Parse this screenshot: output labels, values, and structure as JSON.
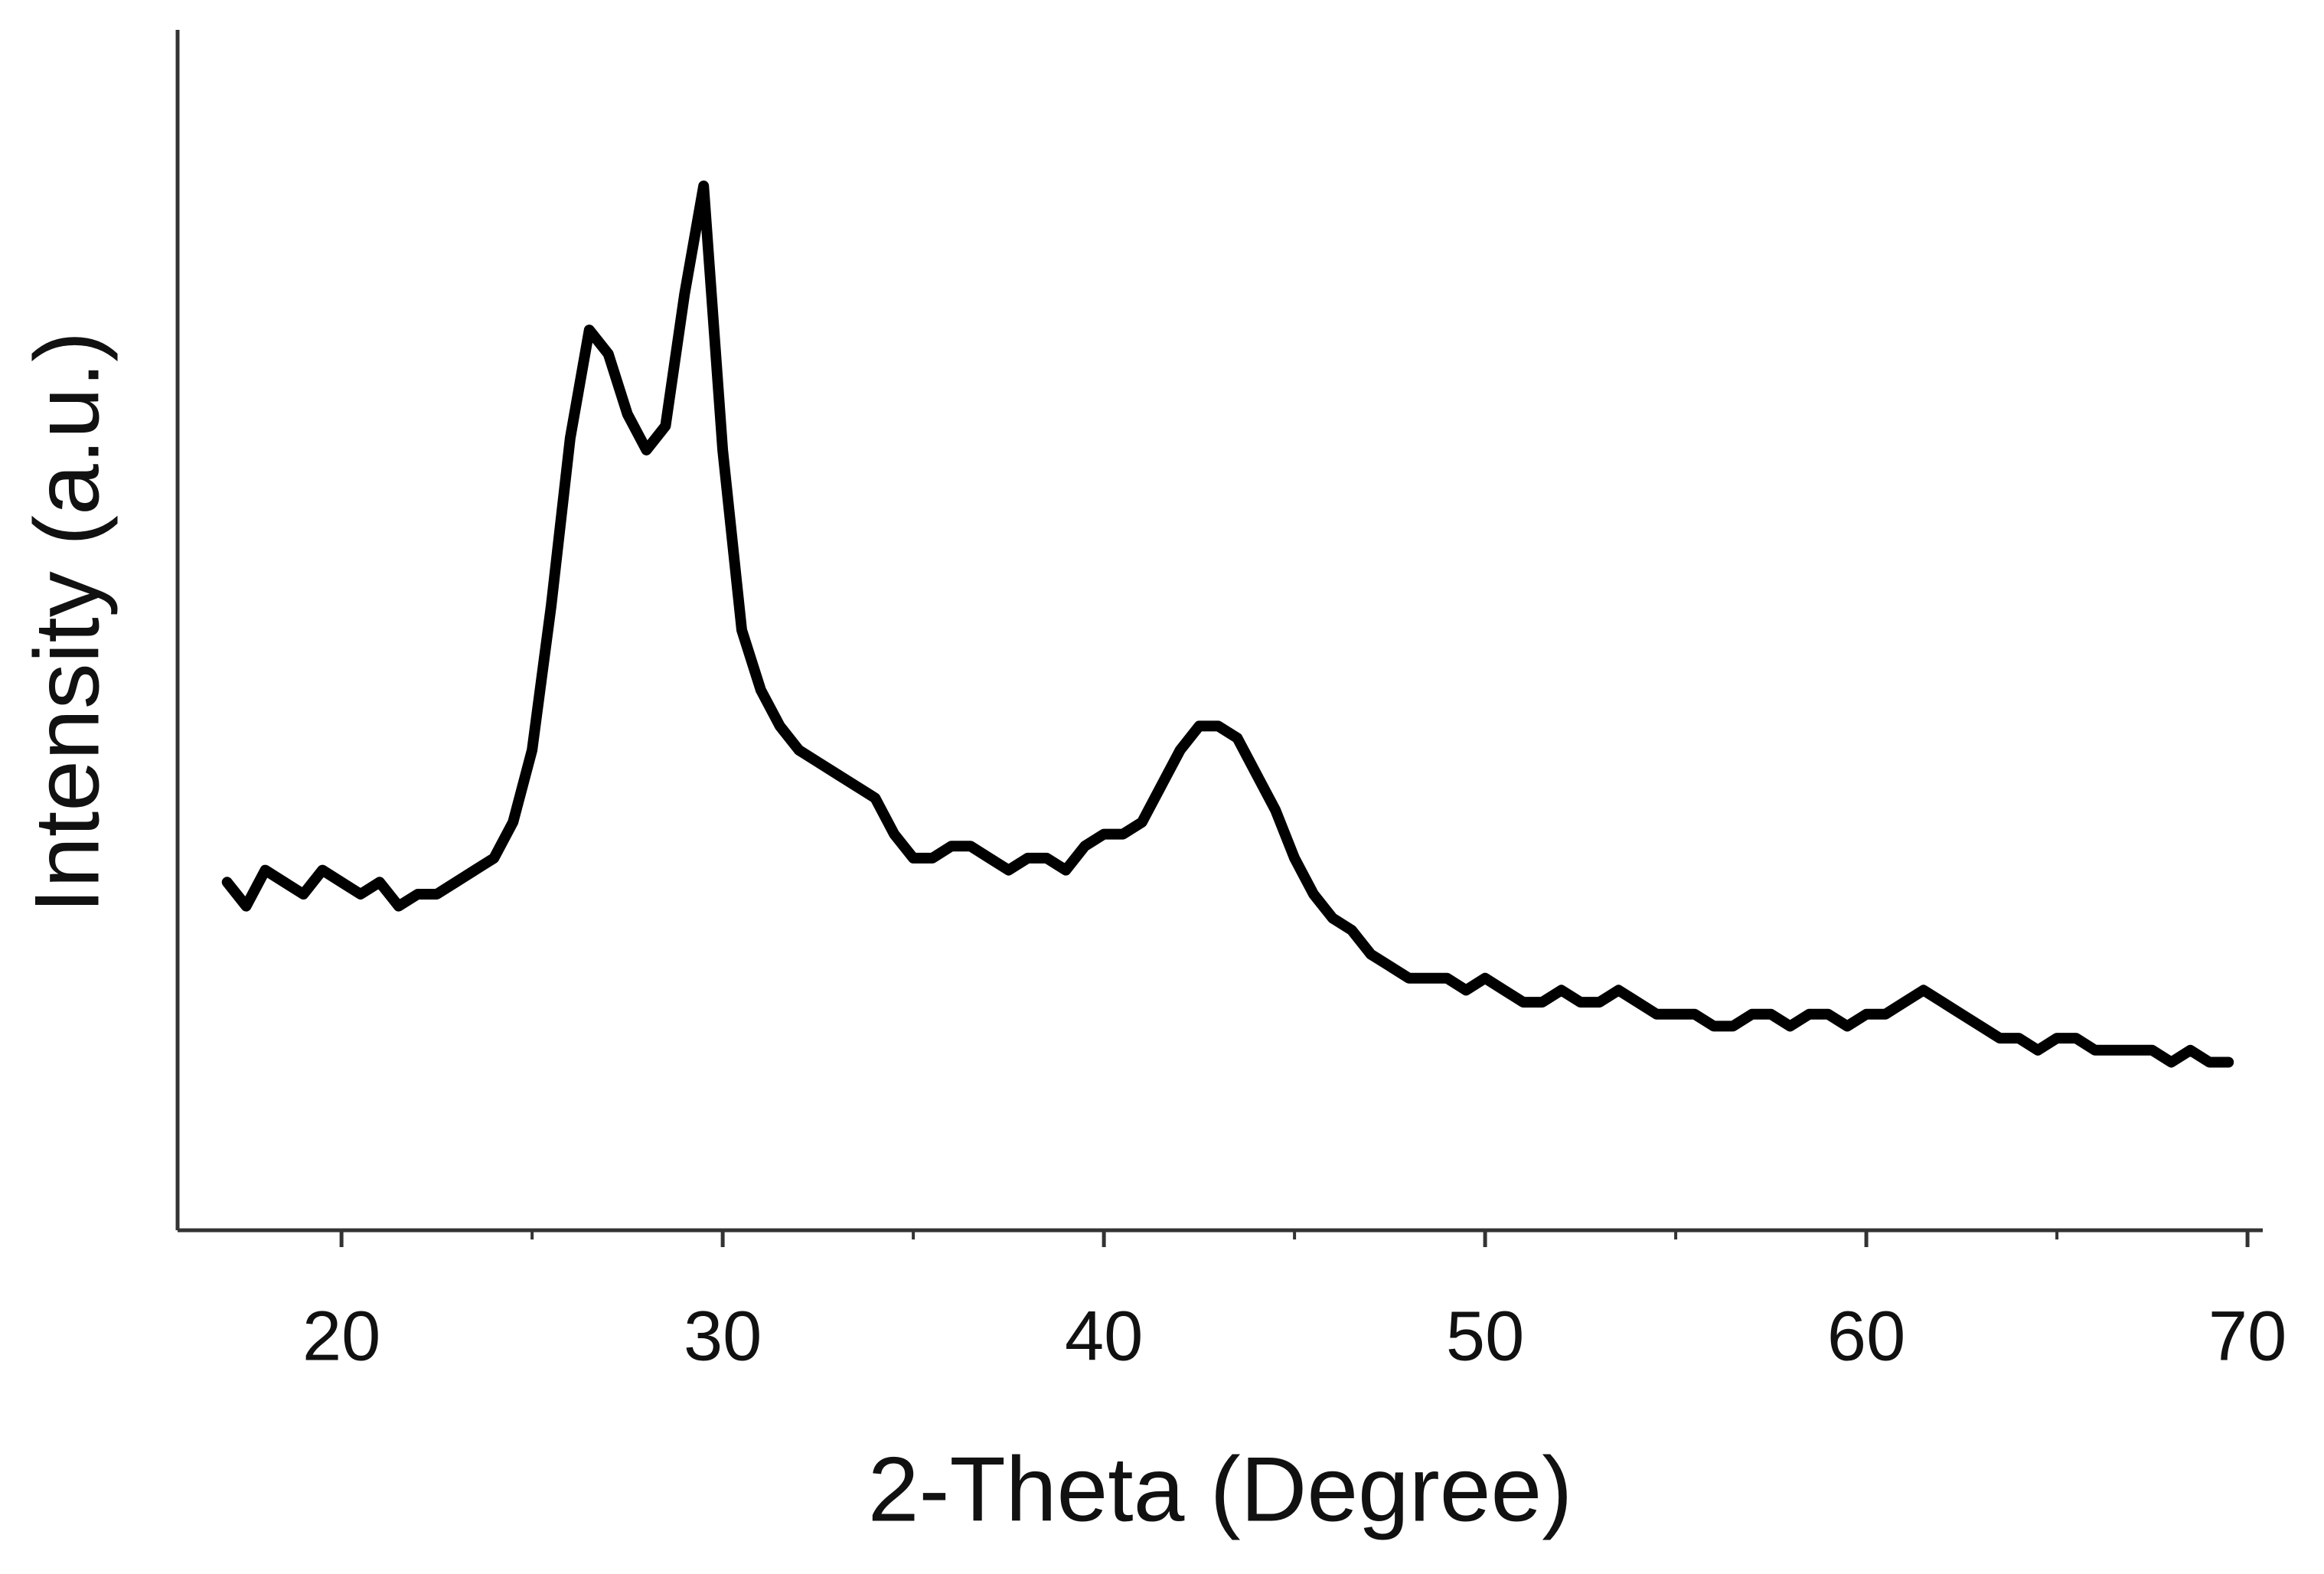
{
  "chart_data": {
    "type": "line",
    "xlabel": "2-Theta (Degree)",
    "ylabel": "Intensity (a.u.)",
    "color": "#000000",
    "x": [
      17,
      17.5,
      18,
      18.5,
      19,
      19.5,
      20,
      20.5,
      21,
      21.5,
      22,
      22.5,
      23,
      23.5,
      24,
      24.5,
      25,
      25.5,
      26,
      26.5,
      27,
      27.5,
      28,
      28.5,
      29,
      29.5,
      30,
      30.5,
      31,
      31.5,
      32,
      32.5,
      33,
      33.5,
      34,
      34.5,
      35,
      35.5,
      36,
      36.5,
      37,
      37.5,
      38,
      38.5,
      39,
      39.5,
      40,
      40.5,
      41,
      41.5,
      42,
      42.5,
      43,
      43.5,
      44,
      44.5,
      45,
      45.5,
      46,
      46.5,
      47,
      47.5,
      48,
      48.5,
      49,
      49.5,
      50,
      50.5,
      51,
      51.5,
      52,
      52.5,
      53,
      53.5,
      54,
      54.5,
      55,
      55.5,
      56,
      56.5,
      57,
      57.5,
      58,
      58.5,
      59,
      59.5,
      60,
      60.5,
      61,
      61.5,
      62,
      62.5,
      63,
      63.5,
      64,
      64.5,
      65,
      65.5,
      66,
      66.5,
      67,
      67.5,
      68,
      68.5,
      69,
      69.5
    ],
    "values": [
      29,
      27,
      30,
      29,
      28,
      30,
      29,
      28,
      29,
      27,
      28,
      28,
      29,
      30,
      31,
      34,
      40,
      52,
      66,
      75,
      73,
      68,
      65,
      67,
      78,
      87,
      65,
      50,
      45,
      42,
      40,
      39,
      38,
      37,
      36,
      33,
      31,
      31,
      32,
      32,
      31,
      30,
      31,
      31,
      30,
      32,
      33,
      33,
      34,
      37,
      40,
      42,
      42,
      41,
      38,
      35,
      31,
      28,
      26,
      25,
      23,
      22,
      21,
      21,
      21,
      20,
      21,
      20,
      19,
      19,
      20,
      19,
      19,
      20,
      19,
      18,
      18,
      18,
      17,
      17,
      18,
      18,
      17,
      18,
      18,
      17,
      18,
      18,
      19,
      20,
      19,
      18,
      17,
      16,
      16,
      15,
      16,
      16,
      15,
      15,
      15,
      15,
      14,
      15,
      14,
      14
    ],
    "xlim": [
      15.7,
      70.4
    ],
    "ylim": [
      0,
      100
    ],
    "xticks": [
      20,
      30,
      40,
      50,
      60,
      70
    ],
    "xminorticks": [
      25,
      35,
      45,
      55,
      65
    ]
  }
}
